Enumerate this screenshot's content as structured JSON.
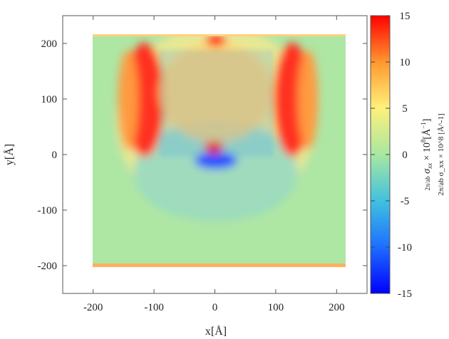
{
  "chart_data": {
    "type": "heatmap",
    "title": "",
    "xlabel": "x[Å]",
    "ylabel": "y[Å]",
    "xlim": [
      -250,
      250
    ],
    "ylim": [
      -250,
      250
    ],
    "xticks": [
      -200,
      -100,
      0,
      100,
      200
    ],
    "yticks": [
      -200,
      -100,
      0,
      100,
      200
    ],
    "xtick_labels": [
      "-200",
      "-100",
      "0",
      "100",
      "200"
    ],
    "ytick_labels": [
      "-200",
      "-100",
      "0",
      "100",
      "200"
    ],
    "colorbar": {
      "label": "2π/ab σ_xx × 10^8 [Å^-1]",
      "label_frac": "2π/ab",
      "label_sigma": "σ",
      "label_sub": "xx",
      "label_times": "× 10",
      "label_exp": "8",
      "label_unit_open": "[Å",
      "label_unit_exp": "−1",
      "label_unit_close": "]",
      "range": [
        -15,
        15
      ],
      "ticks": [
        15,
        10,
        5,
        0,
        -5,
        -10,
        -15
      ],
      "tick_labels": [
        "15",
        "10",
        "5",
        "0",
        "-5",
        "-10",
        "-15"
      ],
      "colormap": [
        "#0000ff",
        "#1e90ff",
        "#40c8e0",
        "#a8e8a0",
        "#fff07a",
        "#ff9a30",
        "#ff0000"
      ]
    },
    "sample_region": {
      "x": [
        -205,
        220
      ],
      "y": [
        -205,
        220
      ]
    },
    "features": [
      {
        "name": "left-lobe",
        "x": -120,
        "y": 110,
        "value": 15
      },
      {
        "name": "right-lobe",
        "x": 125,
        "y": 110,
        "value": 15
      },
      {
        "name": "center-hot-spot",
        "x": 0,
        "y": 15,
        "value": 15
      },
      {
        "name": "center-cold-spot",
        "x": 5,
        "y": -5,
        "value": -15
      },
      {
        "name": "top-hot-spot",
        "x": 5,
        "y": 210,
        "value": 15
      }
    ]
  }
}
